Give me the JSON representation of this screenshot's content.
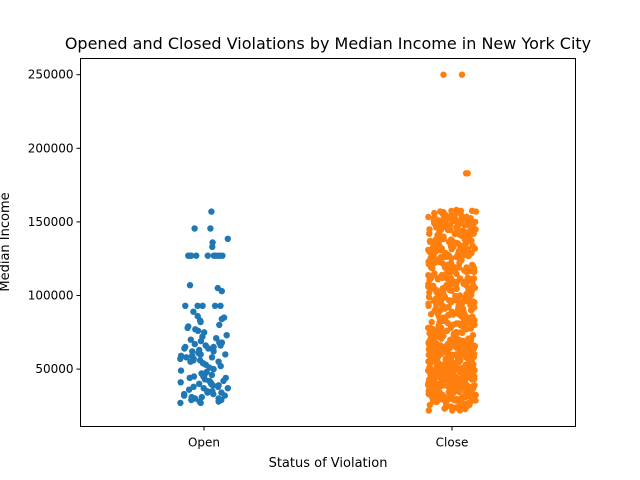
{
  "chart_data": {
    "type": "scatter",
    "subtype": "strip",
    "title": "Opened and Closed Violations by Median Income in New York City",
    "xlabel": "Status of Violation",
    "ylabel": "Median Income",
    "categories": [
      "Open",
      "Close"
    ],
    "ylim": [
      11000,
      261000
    ],
    "yticks": [
      50000,
      100000,
      150000,
      200000,
      250000
    ],
    "ytick_labels": [
      "50000",
      "100000",
      "150000",
      "200000",
      "250000"
    ],
    "grid": false,
    "series": [
      {
        "category": "Open",
        "color": "#1f77b4",
        "values": [
          157000,
          145500,
          145500,
          138500,
          136000,
          133000,
          127000,
          127000,
          127000,
          127000,
          127000,
          127000,
          127000,
          127000,
          127000,
          127000,
          107000,
          105000,
          103000,
          93000,
          93000,
          93000,
          93000,
          93000,
          89000,
          86000,
          85000,
          84000,
          83000,
          82000,
          80000,
          79000,
          78000,
          77000,
          76000,
          75000,
          73000,
          72000,
          71000,
          70000,
          69000,
          68000,
          68000,
          67000,
          66000,
          66000,
          65000,
          65000,
          64000,
          64000,
          63000,
          63000,
          62000,
          62000,
          61000,
          61000,
          60000,
          60000,
          60000,
          59000,
          59000,
          58000,
          58000,
          57000,
          57000,
          56000,
          56000,
          55000,
          55000,
          54000,
          53000,
          52000,
          51000,
          50000,
          49000,
          48000,
          47000,
          46000,
          46000,
          45000,
          45000,
          44000,
          44000,
          43000,
          42000,
          42000,
          41000,
          41000,
          40000,
          40000,
          39000,
          39000,
          38000,
          38000,
          37000,
          37000,
          36000,
          35000,
          35000,
          34000,
          34000,
          33000,
          33000,
          32000,
          32000,
          31000,
          31000,
          30000,
          30000,
          29000,
          29000,
          28000,
          28000,
          27000,
          27000
        ]
      },
      {
        "category": "Close",
        "color": "#ff7f0e",
        "values": [
          250000,
          250000,
          183000,
          183000,
          157000,
          157000,
          156000,
          155000,
          154000,
          153000,
          152000,
          151000,
          150000,
          150000,
          149000,
          148000,
          147000,
          146000,
          145000,
          144000,
          143000,
          142000,
          141000,
          140000,
          139000,
          138000,
          137000,
          136000,
          135000,
          134000,
          133000,
          132000,
          131000,
          130000,
          129000,
          128000,
          127000,
          127000,
          126000,
          125000,
          124000,
          123000,
          122000,
          121000,
          120000,
          119000,
          118000,
          117000,
          116000,
          115000,
          114000,
          113000,
          112000,
          111000,
          110000,
          109000,
          108000,
          107000,
          106000,
          105000,
          104000,
          103000,
          102000,
          101000,
          100000,
          100000,
          99000,
          98000,
          97000,
          96000,
          95000,
          94000,
          93000,
          92000,
          91000,
          90000,
          89000,
          88000,
          87000,
          86000,
          85000,
          84000,
          83000,
          82000,
          81000,
          80000,
          79000,
          78000,
          77000,
          76000,
          75000,
          74000,
          73000,
          72000,
          71000,
          70000,
          70000,
          69000,
          69000,
          68000,
          68000,
          67000,
          67000,
          66000,
          66000,
          65000,
          65000,
          64000,
          64000,
          63000,
          63000,
          62000,
          62000,
          61000,
          61000,
          60000,
          60000,
          59000,
          59000,
          58000,
          58000,
          57000,
          57000,
          56000,
          56000,
          55000,
          55000,
          54000,
          54000,
          53000,
          53000,
          52000,
          52000,
          51000,
          51000,
          50000,
          50000,
          49000,
          49000,
          48000,
          48000,
          47000,
          47000,
          46000,
          46000,
          45000,
          45000,
          44000,
          44000,
          43000,
          43000,
          42000,
          42000,
          41000,
          41000,
          40000,
          40000,
          39000,
          39000,
          38000,
          38000,
          37000,
          37000,
          36000,
          36000,
          35000,
          35000,
          34000,
          34000,
          33000,
          33000,
          32000,
          32000,
          31000,
          31000,
          30000,
          30000,
          29000,
          29000,
          28000,
          28000,
          27000,
          26000,
          25000,
          24000,
          23000,
          22000
        ]
      }
    ]
  }
}
